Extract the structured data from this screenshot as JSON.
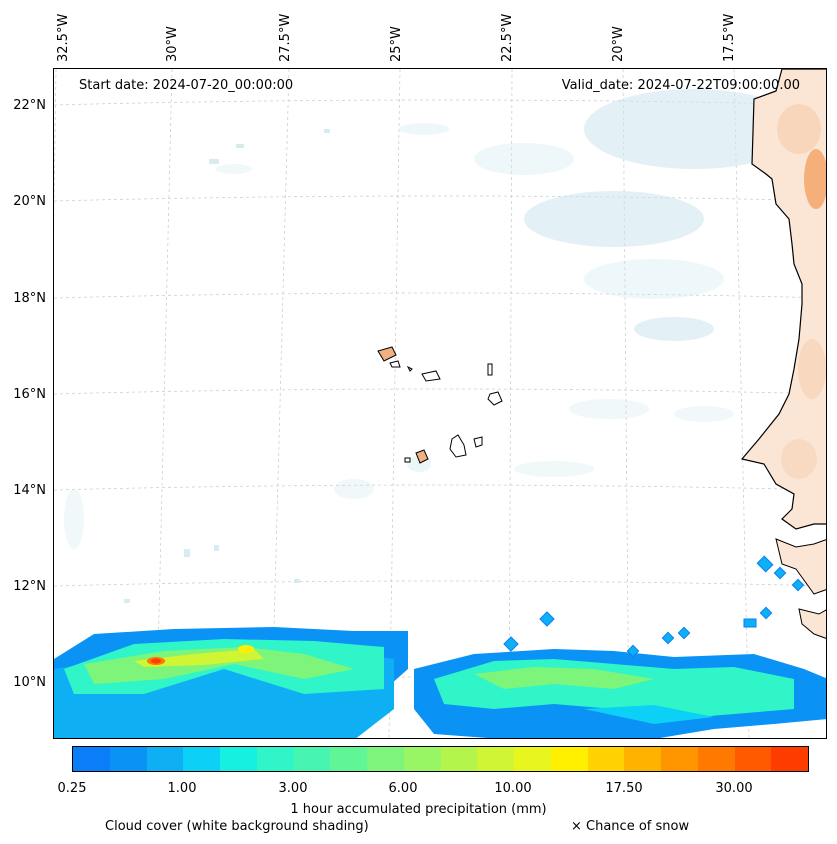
{
  "map": {
    "longitude_labels": [
      "32.5°W",
      "30°W",
      "27.5°W",
      "25°W",
      "22.5°W",
      "20°W",
      "17.5°W"
    ],
    "latitude_labels": [
      "22°N",
      "20°N",
      "18°N",
      "16°N",
      "14°N",
      "12°N",
      "10°N"
    ],
    "start_date": "Start date: 2024-07-20_00:00:00",
    "valid_date": "Valid_date: 2024-07-22T09:00:00.00"
  },
  "colorbar": {
    "title": "1 hour accumulated precipitation (mm)",
    "tick_labels": [
      "0.25",
      "1.00",
      "3.00",
      "6.00",
      "10.00",
      "17.50",
      "30.00"
    ],
    "colors": [
      "#0a7df9",
      "#0a93f5",
      "#0fb0f3",
      "#0cd0f5",
      "#16f0e0",
      "#30f5c8",
      "#48f5b0",
      "#60f596",
      "#7cf57a",
      "#98f563",
      "#b4f54c",
      "#d0f535",
      "#e8f51e",
      "#fff000",
      "#ffd200",
      "#ffb300",
      "#ff9600",
      "#ff7800",
      "#ff5a00",
      "#ff3c00"
    ]
  },
  "legend": {
    "cloud_cover": "Cloud cover (white background shading)",
    "snow": "× Chance of snow"
  },
  "colors": {
    "land_fill": "#f5c6a0",
    "land_fill_strong": "#f0a060",
    "cloud_shade": "#cde6ee",
    "coast": "#000000"
  }
}
